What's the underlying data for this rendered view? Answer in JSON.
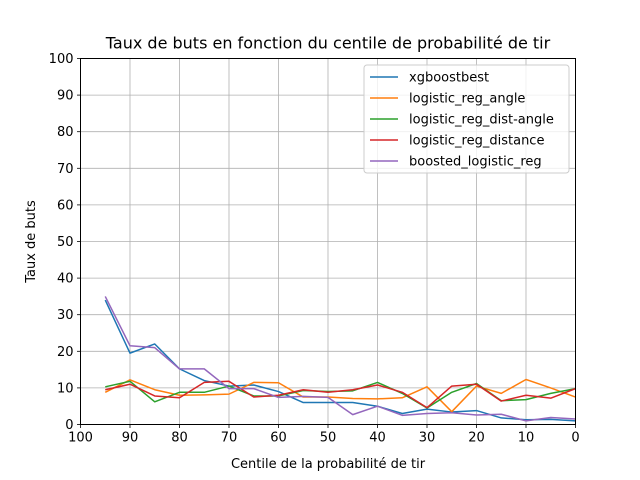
{
  "chart_data": {
    "type": "line",
    "title": "Taux de buts en fonction du centile de probabilité de tir",
    "xlabel": "Centile de la probabilité de tir",
    "ylabel": "Taux de buts",
    "xlim": [
      100,
      0
    ],
    "ylim": [
      0,
      100
    ],
    "x_ticks": [
      100,
      90,
      80,
      70,
      60,
      50,
      40,
      30,
      20,
      10,
      0
    ],
    "y_ticks": [
      0,
      10,
      20,
      30,
      40,
      50,
      60,
      70,
      80,
      90,
      100
    ],
    "grid": true,
    "legend_position": "top-right",
    "x": [
      95,
      90,
      85,
      80,
      75,
      70,
      65,
      60,
      55,
      50,
      45,
      40,
      35,
      30,
      25,
      20,
      15,
      10,
      5,
      0
    ],
    "series": [
      {
        "name": "xgboostbest",
        "color": "#1f77b4",
        "values": [
          34.0,
          19.5,
          22.0,
          15.2,
          12.0,
          10.5,
          10.8,
          9.0,
          6.0,
          6.0,
          6.0,
          5.0,
          3.0,
          4.2,
          3.4,
          3.8,
          1.8,
          1.3,
          1.4,
          1.0
        ]
      },
      {
        "name": "logistic_reg_angle",
        "color": "#ff7f0e",
        "values": [
          8.8,
          12.2,
          9.5,
          8.0,
          8.1,
          8.3,
          11.5,
          11.4,
          7.5,
          7.5,
          7.1,
          7.0,
          7.3,
          10.3,
          3.5,
          10.5,
          8.5,
          12.3,
          10.0,
          7.5
        ]
      },
      {
        "name": "logistic_reg_dist-angle",
        "color": "#2ca02c",
        "values": [
          10.3,
          11.8,
          6.2,
          8.8,
          8.8,
          10.5,
          7.8,
          7.8,
          9.3,
          9.0,
          9.2,
          11.5,
          8.5,
          4.5,
          8.8,
          11.2,
          6.5,
          6.8,
          8.5,
          9.8
        ]
      },
      {
        "name": "logistic_reg_distance",
        "color": "#d62728",
        "values": [
          9.5,
          11.0,
          7.8,
          7.3,
          11.5,
          11.8,
          7.5,
          8.0,
          9.5,
          8.8,
          9.5,
          10.8,
          8.8,
          4.6,
          10.5,
          11.0,
          6.4,
          8.0,
          7.2,
          9.8
        ]
      },
      {
        "name": "boosted_logistic_reg",
        "color": "#9467bd",
        "values": [
          35.0,
          21.5,
          21.0,
          15.2,
          15.2,
          9.8,
          9.8,
          7.4,
          7.7,
          7.4,
          2.7,
          5.0,
          2.5,
          3.0,
          3.2,
          2.6,
          2.8,
          1.0,
          1.9,
          1.5
        ]
      }
    ]
  }
}
